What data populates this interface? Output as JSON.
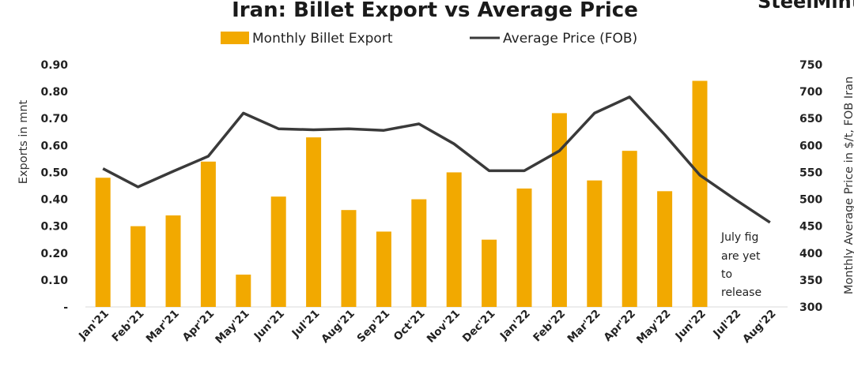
{
  "brand": "SteelMint",
  "note_lines": [
    "July fig",
    "are yet",
    "to",
    "release"
  ],
  "chart_data": {
    "type": "bar",
    "title": "Iran: Billet Export vs Average Price",
    "categories": [
      "Jan'21",
      "Feb'21",
      "Mar'21",
      "Apr'21",
      "May'21",
      "Jun'21",
      "Jul'21",
      "Aug'21",
      "Sep'21",
      "Oct'21",
      "Nov'21",
      "Dec'21",
      "Jan'22",
      "Feb'22",
      "Mar'22",
      "Apr'22",
      "May'22",
      "Jun'22",
      "Jul'22",
      "Aug'22"
    ],
    "series": [
      {
        "name": "Monthly Billet Export",
        "type": "bar",
        "axis": "left",
        "color": "#f2a900",
        "values": [
          0.48,
          0.3,
          0.34,
          0.54,
          0.12,
          0.41,
          0.63,
          0.36,
          0.28,
          0.4,
          0.5,
          0.25,
          0.44,
          0.72,
          0.47,
          0.58,
          0.43,
          0.84,
          null,
          null
        ]
      },
      {
        "name": "Average Price (FOB)",
        "type": "line",
        "axis": "right",
        "color": "#3a3a3a",
        "values": [
          557,
          523,
          552,
          580,
          660,
          631,
          629,
          631,
          628,
          640,
          603,
          553,
          553,
          590,
          660,
          690,
          620,
          545,
          500,
          457
        ]
      }
    ],
    "ylabel": "Exports in mnt",
    "ylim": [
      0,
      0.9
    ],
    "yticks": [
      "-",
      "0.10",
      "0.20",
      "0.30",
      "0.40",
      "0.50",
      "0.60",
      "0.70",
      "0.80",
      "0.90"
    ],
    "y2label": "Monthly  Average Price in $/t, FOB Iran",
    "y2lim": [
      300,
      750
    ],
    "y2ticks": [
      "300",
      "350",
      "400",
      "450",
      "500",
      "550",
      "600",
      "650",
      "700",
      "750"
    ],
    "grid": false,
    "legend": "top-center"
  }
}
